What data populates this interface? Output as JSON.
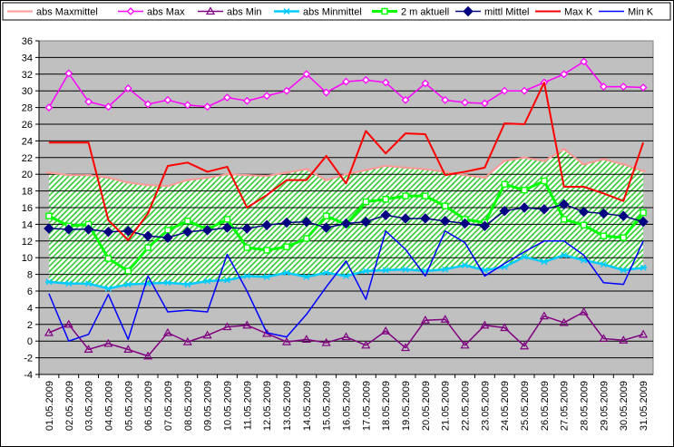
{
  "chart_data": {
    "type": "line",
    "title": "",
    "xlabel": "",
    "ylabel": "",
    "ylim": [
      -4,
      36
    ],
    "ytick_step": 2,
    "grid": "horizontal",
    "legend_position": "top",
    "categories": [
      "01.05.2009",
      "02.05.2009",
      "03.05.2009",
      "04.05.2009",
      "05.05.2009",
      "06.05.2009",
      "07.05.2009",
      "08.05.2009",
      "09.05.2009",
      "10.05.2009",
      "11.05.2009",
      "12.05.2009",
      "13.05.2009",
      "14.05.2009",
      "15.05.2009",
      "16.05.2009",
      "17.05.2009",
      "18.05.2009",
      "19.05.2009",
      "20.05.2009",
      "21.05.2009",
      "22.05.2009",
      "23.05.2009",
      "24.05.2009",
      "25.05.2009",
      "26.05.2009",
      "27.05.2009",
      "28.05.2009",
      "29.05.2009",
      "30.05.2009",
      "31.05.2009"
    ],
    "series": [
      {
        "name": "abs Maxmittel",
        "color": "#ff9999",
        "values": [
          20.2,
          19.9,
          19.9,
          19.6,
          19.0,
          18.7,
          18.6,
          19.3,
          19.6,
          20.0,
          19.9,
          19.8,
          20.2,
          20.6,
          19.3,
          20.0,
          20.5,
          21.0,
          20.8,
          20.6,
          20.3,
          19.9,
          19.6,
          21.6,
          22.0,
          21.6,
          23.0,
          21.2,
          21.8,
          21.2,
          20.4
        ]
      },
      {
        "name": "abs Max",
        "color": "#ff00ff",
        "values": [
          28.0,
          32.1,
          28.7,
          28.1,
          30.3,
          28.4,
          28.9,
          28.3,
          28.1,
          29.2,
          28.8,
          29.4,
          30.0,
          32.0,
          29.8,
          31.1,
          31.3,
          31.0,
          28.9,
          30.9,
          28.9,
          28.6,
          28.5,
          30.0,
          30.0,
          31.0,
          32.0,
          33.5,
          30.5,
          30.5,
          30.4
        ]
      },
      {
        "name": "abs Min",
        "color": "#800080",
        "values": [
          1.0,
          2.0,
          -1.0,
          -0.3,
          -1.0,
          -1.8,
          1.0,
          -0.1,
          0.7,
          1.7,
          1.9,
          0.9,
          -0.1,
          0.2,
          -0.2,
          0.5,
          -0.5,
          1.2,
          -0.8,
          2.5,
          2.6,
          -0.5,
          1.9,
          1.6,
          -0.6,
          3.0,
          2.2,
          3.5,
          0.3,
          0.1,
          0.8
        ]
      },
      {
        "name": "abs Minmittel",
        "color": "#00ccff",
        "values": [
          7.1,
          6.9,
          6.9,
          6.3,
          6.8,
          6.9,
          7.0,
          6.8,
          7.2,
          7.3,
          7.8,
          7.7,
          8.2,
          7.7,
          8.2,
          7.8,
          8.4,
          8.5,
          8.6,
          8.4,
          8.6,
          9.1,
          8.5,
          8.9,
          10.1,
          9.5,
          10.3,
          9.7,
          9.2,
          8.5,
          8.8
        ]
      },
      {
        "name": "2 m aktuell",
        "color": "#00ff00",
        "values": [
          15.0,
          13.8,
          14.0,
          9.9,
          8.4,
          11.2,
          13.3,
          14.4,
          13.4,
          14.6,
          11.2,
          10.9,
          11.3,
          12.3,
          15.0,
          14.0,
          16.7,
          17.0,
          17.4,
          17.4,
          16.2,
          14.6,
          14.2,
          18.8,
          18.1,
          19.2,
          14.6,
          13.9,
          12.6,
          12.4,
          15.4
        ]
      },
      {
        "name": "mittl Mittel",
        "color": "#000080",
        "values": [
          13.5,
          13.4,
          13.4,
          13.1,
          13.2,
          12.6,
          12.4,
          13.1,
          13.3,
          13.6,
          13.5,
          13.9,
          14.2,
          14.3,
          13.6,
          14.1,
          14.3,
          15.1,
          14.7,
          14.7,
          14.4,
          14.1,
          13.8,
          15.6,
          16.0,
          15.8,
          16.4,
          15.5,
          15.3,
          15.0,
          14.3
        ]
      },
      {
        "name": "Max K",
        "color": "#ff0000",
        "values": [
          23.8,
          23.8,
          23.8,
          14.5,
          12.1,
          15.3,
          21.0,
          21.4,
          20.3,
          20.9,
          16.0,
          17.5,
          19.3,
          19.3,
          22.2,
          18.9,
          25.2,
          22.5,
          24.9,
          24.8,
          19.9,
          20.3,
          20.8,
          26.1,
          26.0,
          31.0,
          18.5,
          18.5,
          17.7,
          16.8,
          23.8
        ]
      },
      {
        "name": "Min K",
        "color": "#0000ff",
        "values": [
          5.7,
          0.0,
          0.8,
          5.6,
          0.2,
          7.8,
          3.5,
          3.7,
          3.5,
          10.4,
          6.0,
          1.0,
          0.5,
          3.2,
          6.5,
          9.6,
          5.0,
          13.2,
          11.0,
          7.8,
          13.2,
          11.8,
          7.8,
          9.3,
          10.7,
          12.0,
          12.0,
          10.3,
          7.0,
          6.8,
          12.0
        ]
      }
    ]
  }
}
